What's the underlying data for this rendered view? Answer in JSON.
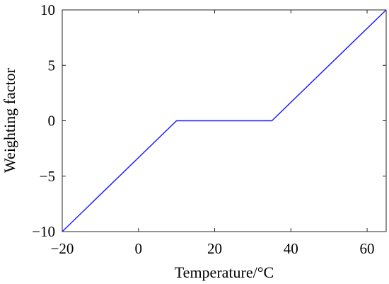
{
  "chart_data": {
    "type": "line",
    "xlabel": "Temperature/°C",
    "ylabel": "Weighting factor",
    "xlim": [
      -20,
      65
    ],
    "ylim": [
      -10,
      10
    ],
    "xticks": [
      -20,
      0,
      20,
      40,
      60
    ],
    "yticks": [
      -10,
      -5,
      0,
      5,
      10
    ],
    "xtick_labels": [
      "−20",
      "0",
      "20",
      "40",
      "60"
    ],
    "ytick_labels": [
      "−10",
      "−5",
      "0",
      "5",
      "10"
    ],
    "grid": false,
    "legend": "none",
    "series": [
      {
        "color": "#1f1fff",
        "x": [
          -20,
          10,
          35,
          65
        ],
        "y": [
          -10,
          0,
          0,
          10
        ]
      }
    ]
  }
}
